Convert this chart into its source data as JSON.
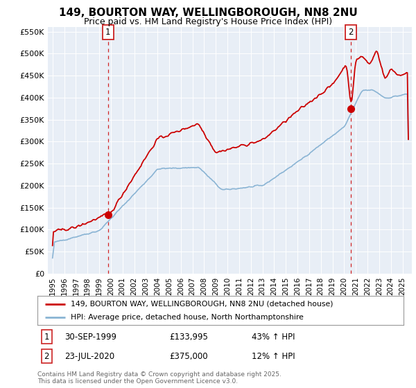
{
  "title": "149, BOURTON WAY, WELLINGBOROUGH, NN8 2NU",
  "subtitle": "Price paid vs. HM Land Registry's House Price Index (HPI)",
  "plot_bg_color": "#e8eef6",
  "red_color": "#cc0000",
  "blue_color": "#8ab4d4",
  "ylabel_ticks": [
    "£0",
    "£50K",
    "£100K",
    "£150K",
    "£200K",
    "£250K",
    "£300K",
    "£350K",
    "£400K",
    "£450K",
    "£500K",
    "£550K"
  ],
  "ytick_values": [
    0,
    50000,
    100000,
    150000,
    200000,
    250000,
    300000,
    350000,
    400000,
    450000,
    500000,
    550000
  ],
  "legend_line1": "149, BOURTON WAY, WELLINGBOROUGH, NN8 2NU (detached house)",
  "legend_line2": "HPI: Average price, detached house, North Northamptonshire",
  "sale1_year": 1999.75,
  "sale1_price": 133995,
  "sale2_year": 2020.55,
  "sale2_price": 375000,
  "footer": "Contains HM Land Registry data © Crown copyright and database right 2025.\nThis data is licensed under the Open Government Licence v3.0."
}
